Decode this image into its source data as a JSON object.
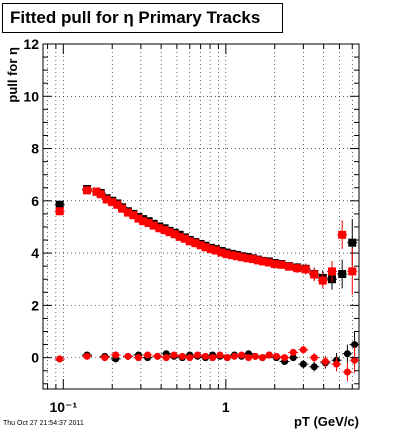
{
  "title": "Fitted pull for η  Primary Tracks",
  "timestamp": "Thu Oct 27 21:54:37 2011",
  "chart_data": {
    "type": "scatter",
    "title": "Fitted pull for η  Primary Tracks",
    "xlabel": "pT (GeV/c)",
    "ylabel": "pull for η",
    "xscale": "log",
    "xlim": [
      0.075,
      6.6
    ],
    "ylim": [
      -1.2,
      12
    ],
    "yticks": [
      0,
      2,
      4,
      6,
      8,
      10,
      12
    ],
    "xtick_labels": [
      "10⁻¹",
      "1"
    ],
    "grid": true,
    "colors": {
      "black": "#000000",
      "red": "#ff0000"
    },
    "series": [
      {
        "marker": "square",
        "color": "#000000",
        "x": [
          0.095,
          0.14,
          0.16,
          0.17,
          0.185,
          0.2,
          0.215,
          0.23,
          0.25,
          0.27,
          0.29,
          0.31,
          0.335,
          0.36,
          0.39,
          0.42,
          0.45,
          0.485,
          0.52,
          0.56,
          0.6,
          0.65,
          0.7,
          0.75,
          0.81,
          0.87,
          0.94,
          1.01,
          1.09,
          1.17,
          1.26,
          1.36,
          1.47,
          1.58,
          1.7,
          1.84,
          2.0,
          2.2,
          2.45,
          2.75,
          3.1,
          3.5,
          3.95,
          4.5,
          5.2,
          6.0
        ],
        "y": [
          5.85,
          6.45,
          6.35,
          6.3,
          6.1,
          6.0,
          5.9,
          5.75,
          5.6,
          5.5,
          5.38,
          5.3,
          5.22,
          5.12,
          5.02,
          4.95,
          4.85,
          4.78,
          4.7,
          4.6,
          4.5,
          4.42,
          4.35,
          4.28,
          4.2,
          4.15,
          4.08,
          4.02,
          3.97,
          3.93,
          3.88,
          3.85,
          3.8,
          3.75,
          3.7,
          3.68,
          3.62,
          3.58,
          3.5,
          3.45,
          3.4,
          3.2,
          3.05,
          3.0,
          3.2,
          4.4
        ],
        "yerr": [
          0.15,
          0.1,
          0.08,
          0.08,
          0.07,
          0.07,
          0.07,
          0.07,
          0.07,
          0.06,
          0.06,
          0.06,
          0.06,
          0.06,
          0.06,
          0.06,
          0.06,
          0.06,
          0.06,
          0.06,
          0.06,
          0.06,
          0.06,
          0.06,
          0.07,
          0.07,
          0.07,
          0.07,
          0.08,
          0.08,
          0.08,
          0.09,
          0.09,
          0.1,
          0.1,
          0.11,
          0.12,
          0.14,
          0.15,
          0.18,
          0.2,
          0.25,
          0.3,
          0.4,
          0.55,
          0.9
        ]
      },
      {
        "marker": "square",
        "color": "#ff0000",
        "x": [
          0.095,
          0.14,
          0.16,
          0.17,
          0.185,
          0.2,
          0.215,
          0.23,
          0.25,
          0.27,
          0.29,
          0.31,
          0.335,
          0.36,
          0.39,
          0.42,
          0.45,
          0.485,
          0.52,
          0.56,
          0.6,
          0.65,
          0.7,
          0.75,
          0.81,
          0.87,
          0.94,
          1.01,
          1.09,
          1.17,
          1.26,
          1.36,
          1.47,
          1.58,
          1.7,
          1.84,
          2.0,
          2.2,
          2.45,
          2.75,
          3.1,
          3.5,
          3.95,
          4.5,
          5.2,
          6.0
        ],
        "y": [
          5.6,
          6.4,
          6.35,
          6.25,
          6.05,
          5.95,
          5.85,
          5.7,
          5.55,
          5.45,
          5.32,
          5.22,
          5.15,
          5.05,
          4.95,
          4.88,
          4.8,
          4.72,
          4.62,
          4.55,
          4.45,
          4.38,
          4.3,
          4.22,
          4.15,
          4.1,
          4.02,
          3.96,
          3.92,
          3.88,
          3.84,
          3.8,
          3.77,
          3.72,
          3.68,
          3.64,
          3.58,
          3.55,
          3.48,
          3.42,
          3.38,
          3.18,
          2.95,
          3.3,
          4.7,
          3.3
        ],
        "yerr": [
          0.15,
          0.1,
          0.08,
          0.08,
          0.07,
          0.07,
          0.07,
          0.07,
          0.07,
          0.06,
          0.06,
          0.06,
          0.06,
          0.06,
          0.06,
          0.06,
          0.06,
          0.06,
          0.06,
          0.06,
          0.06,
          0.06,
          0.06,
          0.06,
          0.07,
          0.07,
          0.07,
          0.07,
          0.08,
          0.08,
          0.08,
          0.09,
          0.09,
          0.1,
          0.1,
          0.11,
          0.12,
          0.14,
          0.15,
          0.18,
          0.2,
          0.25,
          0.3,
          0.4,
          0.55,
          0.9
        ]
      },
      {
        "marker": "circle",
        "color": "#000000",
        "x": [
          0.095,
          0.14,
          0.18,
          0.21,
          0.25,
          0.29,
          0.33,
          0.38,
          0.43,
          0.48,
          0.54,
          0.6,
          0.67,
          0.75,
          0.83,
          0.92,
          1.02,
          1.13,
          1.25,
          1.38,
          1.52,
          1.68,
          1.85,
          2.05,
          2.3,
          2.6,
          3.0,
          3.5,
          4.1,
          4.8,
          5.6,
          6.2
        ],
        "y": [
          -0.05,
          0.1,
          0.05,
          -0.05,
          0.05,
          0.1,
          0.0,
          0.05,
          0.15,
          0.05,
          0.0,
          0.1,
          0.05,
          0.0,
          0.1,
          0.05,
          0.0,
          0.1,
          0.05,
          0.15,
          0.05,
          0.0,
          0.1,
          0.0,
          -0.15,
          0.0,
          -0.25,
          -0.35,
          -0.2,
          -0.1,
          0.15,
          0.5
        ],
        "yerr": [
          0.06,
          0.05,
          0.05,
          0.05,
          0.05,
          0.05,
          0.05,
          0.05,
          0.05,
          0.05,
          0.05,
          0.05,
          0.05,
          0.05,
          0.05,
          0.05,
          0.05,
          0.05,
          0.06,
          0.06,
          0.06,
          0.07,
          0.07,
          0.08,
          0.1,
          0.12,
          0.15,
          0.18,
          0.22,
          0.28,
          0.35,
          0.5
        ]
      },
      {
        "marker": "circle",
        "color": "#ff0000",
        "x": [
          0.095,
          0.14,
          0.18,
          0.21,
          0.25,
          0.29,
          0.33,
          0.38,
          0.43,
          0.48,
          0.54,
          0.6,
          0.67,
          0.75,
          0.83,
          0.92,
          1.02,
          1.13,
          1.25,
          1.38,
          1.52,
          1.68,
          1.85,
          2.05,
          2.3,
          2.6,
          3.0,
          3.5,
          4.1,
          4.8,
          5.6,
          6.2
        ],
        "y": [
          -0.05,
          0.05,
          0.0,
          0.1,
          0.05,
          0.0,
          0.1,
          0.05,
          0.0,
          0.1,
          0.05,
          0.0,
          0.1,
          0.05,
          0.0,
          0.1,
          0.0,
          0.05,
          0.1,
          0.0,
          0.05,
          0.0,
          0.1,
          0.05,
          0.0,
          0.2,
          0.3,
          0.0,
          -0.15,
          -0.25,
          -0.55,
          -0.1
        ],
        "yerr": [
          0.06,
          0.05,
          0.05,
          0.05,
          0.05,
          0.05,
          0.05,
          0.05,
          0.05,
          0.05,
          0.05,
          0.05,
          0.05,
          0.05,
          0.05,
          0.05,
          0.05,
          0.05,
          0.06,
          0.06,
          0.06,
          0.07,
          0.07,
          0.08,
          0.1,
          0.12,
          0.15,
          0.18,
          0.22,
          0.28,
          0.35,
          0.5
        ]
      }
    ]
  }
}
